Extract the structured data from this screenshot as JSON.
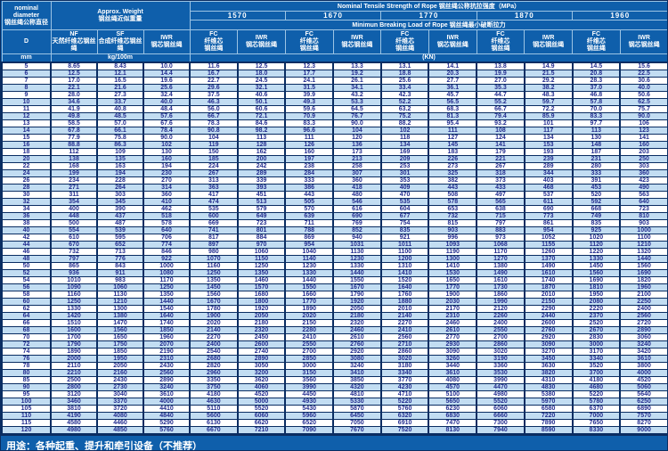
{
  "header": {
    "nominal_en": "nominal diameter",
    "nominal_zh": "钢丝绳公称直径",
    "weight_en": "Approx. Weight",
    "weight_zh": "钢丝绳近似重量",
    "tensile_title": "Nominal  Tensile  Strength  of  Rope  钢丝绳公称抗拉强度（MPa）",
    "breaking_title": "Minimun  Breaking  Load  of  Rope  钢丝绳最小破断拉力",
    "grades": [
      "1570",
      "1670",
      "1770",
      "1870",
      "1960"
    ],
    "d_label": "D",
    "nf_en": "NF",
    "nf_zh": "天然纤维芯钢丝绳",
    "sf_en": "SF",
    "sf_zh": "合成纤维芯钢丝绳",
    "iwr_en": "IWR",
    "iwr_zh": "钢芯钢丝绳",
    "fc_en": "FC",
    "fc_zh": "纤维芯钢丝绳",
    "unit_mm": "mm",
    "unit_weight": "kg/100m",
    "unit_load": "(KN)"
  },
  "note": "用途：各种起重、提升和牵引设备（不推荐）",
  "chart_data": {
    "type": "table",
    "columns": [
      "D mm",
      "NF kg/100m",
      "SF kg/100m",
      "IWR kg/100m",
      "1570 FC (KN)",
      "1570 IWR (KN)",
      "1670 FC (KN)",
      "1670 IWR (KN)",
      "1770 FC (KN)",
      "1770 IWR (KN)",
      "1870 FC (KN)",
      "1870 IWR (KN)",
      "1960 FC (KN)",
      "1960 IWR (KN)"
    ],
    "rows": [
      [
        "5",
        "8.65",
        "8.43",
        "10.0",
        "11.6",
        "12.5",
        "12.3",
        "13.3",
        "13.1",
        "14.1",
        "13.8",
        "14.9",
        "14.5",
        "15.6"
      ],
      [
        "6",
        "12.5",
        "12.1",
        "14.4",
        "16.7",
        "18.0",
        "17.7",
        "19.2",
        "18.8",
        "20.3",
        "19.9",
        "21.5",
        "20.8",
        "22.5"
      ],
      [
        "7",
        "17.0",
        "16.5",
        "19.6",
        "22.7",
        "24.5",
        "24.1",
        "26.1",
        "25.6",
        "27.7",
        "27.0",
        "29.2",
        "28.3",
        "30.6"
      ],
      [
        "8",
        "22.1",
        "21.6",
        "25.6",
        "29.6",
        "32.1",
        "31.5",
        "34.1",
        "33.4",
        "36.1",
        "35.3",
        "38.2",
        "37.0",
        "40.0"
      ],
      [
        "9",
        "28.0",
        "27.3",
        "32.4",
        "37.5",
        "40.6",
        "39.9",
        "43.2",
        "42.3",
        "45.7",
        "44.7",
        "48.3",
        "46.8",
        "50.6"
      ],
      [
        "10",
        "34.6",
        "33.7",
        "40.0",
        "46.3",
        "50.1",
        "49.3",
        "53.3",
        "52.2",
        "56.5",
        "55.2",
        "59.7",
        "57.8",
        "62.5"
      ],
      [
        "11",
        "41.9",
        "40.8",
        "48.4",
        "56.0",
        "60.6",
        "59.6",
        "64.5",
        "63.2",
        "68.3",
        "66.7",
        "72.2",
        "70.0",
        "75.7"
      ],
      [
        "12",
        "49.8",
        "48.5",
        "57.6",
        "66.7",
        "72.1",
        "70.9",
        "76.7",
        "75.2",
        "81.3",
        "79.4",
        "85.9",
        "83.3",
        "90.0"
      ],
      [
        "13",
        "58.5",
        "57.0",
        "67.6",
        "78.3",
        "84.6",
        "83.3",
        "90.0",
        "88.2",
        "95.4",
        "93.2",
        "101",
        "97.7",
        "106"
      ],
      [
        "14",
        "67.8",
        "66.1",
        "78.4",
        "90.8",
        "98.2",
        "96.6",
        "104",
        "102",
        "111",
        "108",
        "117",
        "113",
        "123"
      ],
      [
        "15",
        "77.9",
        "75.8",
        "90.0",
        "104",
        "113",
        "111",
        "120",
        "118",
        "127",
        "124",
        "134",
        "130",
        "141"
      ],
      [
        "16",
        "88.8",
        "86.3",
        "102",
        "119",
        "128",
        "126",
        "136",
        "134",
        "145",
        "141",
        "153",
        "148",
        "160"
      ],
      [
        "18",
        "112",
        "109",
        "130",
        "150",
        "162",
        "160",
        "173",
        "169",
        "183",
        "179",
        "193",
        "187",
        "203"
      ],
      [
        "20",
        "138",
        "135",
        "160",
        "185",
        "200",
        "197",
        "213",
        "209",
        "226",
        "221",
        "239",
        "231",
        "250"
      ],
      [
        "22",
        "168",
        "163",
        "194",
        "224",
        "242",
        "238",
        "258",
        "253",
        "273",
        "267",
        "289",
        "280",
        "303"
      ],
      [
        "24",
        "199",
        "194",
        "230",
        "267",
        "289",
        "284",
        "307",
        "301",
        "325",
        "318",
        "344",
        "333",
        "360"
      ],
      [
        "26",
        "234",
        "228",
        "270",
        "313",
        "339",
        "333",
        "360",
        "353",
        "382",
        "373",
        "403",
        "391",
        "423"
      ],
      [
        "28",
        "271",
        "264",
        "314",
        "363",
        "393",
        "386",
        "418",
        "409",
        "443",
        "433",
        "468",
        "453",
        "490"
      ],
      [
        "30",
        "311",
        "303",
        "360",
        "417",
        "451",
        "443",
        "480",
        "470",
        "508",
        "497",
        "537",
        "520",
        "563"
      ],
      [
        "32",
        "354",
        "345",
        "410",
        "474",
        "513",
        "505",
        "546",
        "535",
        "578",
        "565",
        "611",
        "592",
        "640"
      ],
      [
        "34",
        "400",
        "390",
        "462",
        "535",
        "579",
        "570",
        "616",
        "604",
        "653",
        "638",
        "690",
        "668",
        "723"
      ],
      [
        "36",
        "448",
        "437",
        "518",
        "600",
        "649",
        "639",
        "690",
        "677",
        "732",
        "715",
        "773",
        "749",
        "810"
      ],
      [
        "38",
        "500",
        "487",
        "578",
        "669",
        "723",
        "711",
        "769",
        "754",
        "815",
        "797",
        "861",
        "835",
        "903"
      ],
      [
        "40",
        "554",
        "539",
        "640",
        "741",
        "801",
        "788",
        "852",
        "835",
        "903",
        "883",
        "954",
        "925",
        "1000"
      ],
      [
        "42",
        "610",
        "595",
        "706",
        "817",
        "884",
        "869",
        "940",
        "921",
        "996",
        "973",
        "1052",
        "1020",
        "1100"
      ],
      [
        "44",
        "670",
        "652",
        "774",
        "897",
        "970",
        "954",
        "1031",
        "1011",
        "1093",
        "1068",
        "1155",
        "1120",
        "1210"
      ],
      [
        "46",
        "732",
        "713",
        "846",
        "980",
        "1060",
        "1040",
        "1130",
        "1100",
        "1190",
        "1170",
        "1260",
        "1220",
        "1320"
      ],
      [
        "48",
        "797",
        "776",
        "922",
        "1070",
        "1150",
        "1140",
        "1230",
        "1200",
        "1300",
        "1270",
        "1370",
        "1330",
        "1440"
      ],
      [
        "50",
        "865",
        "843",
        "1000",
        "1160",
        "1250",
        "1230",
        "1330",
        "1310",
        "1410",
        "1380",
        "1490",
        "1450",
        "1560"
      ],
      [
        "52",
        "936",
        "911",
        "1080",
        "1250",
        "1350",
        "1330",
        "1440",
        "1410",
        "1530",
        "1490",
        "1610",
        "1560",
        "1690"
      ],
      [
        "54",
        "1010",
        "983",
        "1170",
        "1350",
        "1460",
        "1440",
        "1550",
        "1520",
        "1650",
        "1610",
        "1740",
        "1690",
        "1820"
      ],
      [
        "56",
        "1090",
        "1060",
        "1250",
        "1450",
        "1570",
        "1550",
        "1670",
        "1640",
        "1770",
        "1730",
        "1870",
        "1810",
        "1960"
      ],
      [
        "58",
        "1160",
        "1130",
        "1350",
        "1560",
        "1680",
        "1660",
        "1790",
        "1760",
        "1900",
        "1860",
        "2010",
        "1950",
        "2100"
      ],
      [
        "60",
        "1250",
        "1210",
        "1440",
        "1670",
        "1800",
        "1770",
        "1920",
        "1880",
        "2030",
        "1990",
        "2150",
        "2080",
        "2250"
      ],
      [
        "62",
        "1330",
        "1300",
        "1540",
        "1780",
        "1920",
        "1890",
        "2050",
        "2010",
        "2170",
        "2120",
        "2290",
        "2220",
        "2400"
      ],
      [
        "64",
        "1420",
        "1380",
        "1640",
        "1900",
        "2050",
        "2020",
        "2180",
        "2140",
        "2310",
        "2260",
        "2440",
        "2370",
        "2560"
      ],
      [
        "66",
        "1510",
        "1470",
        "1740",
        "2020",
        "2180",
        "2150",
        "2320",
        "2270",
        "2460",
        "2400",
        "2600",
        "2520",
        "2720"
      ],
      [
        "68",
        "1600",
        "1560",
        "1850",
        "2140",
        "2320",
        "2280",
        "2460",
        "2410",
        "2610",
        "2550",
        "2760",
        "2670",
        "2890"
      ],
      [
        "70",
        "1700",
        "1650",
        "1960",
        "2270",
        "2450",
        "2410",
        "2610",
        "2560",
        "2770",
        "2700",
        "2920",
        "2830",
        "3060"
      ],
      [
        "72",
        "1790",
        "1750",
        "2070",
        "2400",
        "2600",
        "2550",
        "2760",
        "2710",
        "2930",
        "2860",
        "3090",
        "3000",
        "3240"
      ],
      [
        "74",
        "1890",
        "1850",
        "2190",
        "2540",
        "2740",
        "2700",
        "2920",
        "2860",
        "3090",
        "3020",
        "3270",
        "3170",
        "3420"
      ],
      [
        "76",
        "2000",
        "1950",
        "2310",
        "2680",
        "2890",
        "2850",
        "3080",
        "3020",
        "3260",
        "3190",
        "3450",
        "3340",
        "3610"
      ],
      [
        "78",
        "2110",
        "2050",
        "2430",
        "2820",
        "3050",
        "3000",
        "3240",
        "3180",
        "3440",
        "3360",
        "3630",
        "3520",
        "3800"
      ],
      [
        "80",
        "2210",
        "2160",
        "2560",
        "2960",
        "3200",
        "3150",
        "3410",
        "3340",
        "3610",
        "3530",
        "3820",
        "3700",
        "4000"
      ],
      [
        "85",
        "2500",
        "2430",
        "2890",
        "3350",
        "3620",
        "3560",
        "3850",
        "3770",
        "4080",
        "3990",
        "4310",
        "4180",
        "4520"
      ],
      [
        "90",
        "2800",
        "2730",
        "3240",
        "3750",
        "4060",
        "3990",
        "4320",
        "4230",
        "4570",
        "4470",
        "4830",
        "4680",
        "5060"
      ],
      [
        "95",
        "3120",
        "3040",
        "3610",
        "4180",
        "4520",
        "4450",
        "4810",
        "4710",
        "5100",
        "4980",
        "5380",
        "5220",
        "5640"
      ],
      [
        "100",
        "3460",
        "3370",
        "4000",
        "4630",
        "5000",
        "4930",
        "5330",
        "5220",
        "5650",
        "5520",
        "5970",
        "5780",
        "6250"
      ],
      [
        "105",
        "3810",
        "3720",
        "4410",
        "5110",
        "5520",
        "5430",
        "5870",
        "5760",
        "6230",
        "6060",
        "6580",
        "6370",
        "6890"
      ],
      [
        "110",
        "4190",
        "4080",
        "4840",
        "5600",
        "6060",
        "5960",
        "6450",
        "6320",
        "6830",
        "6660",
        "7220",
        "7000",
        "7570"
      ],
      [
        "115",
        "4580",
        "4460",
        "5290",
        "6130",
        "6620",
        "6520",
        "7050",
        "6910",
        "7470",
        "7300",
        "7890",
        "7650",
        "8270"
      ],
      [
        "120",
        "4980",
        "4850",
        "5760",
        "6670",
        "7210",
        "7090",
        "7670",
        "7520",
        "8130",
        "7940",
        "8590",
        "8330",
        "9000"
      ]
    ]
  }
}
